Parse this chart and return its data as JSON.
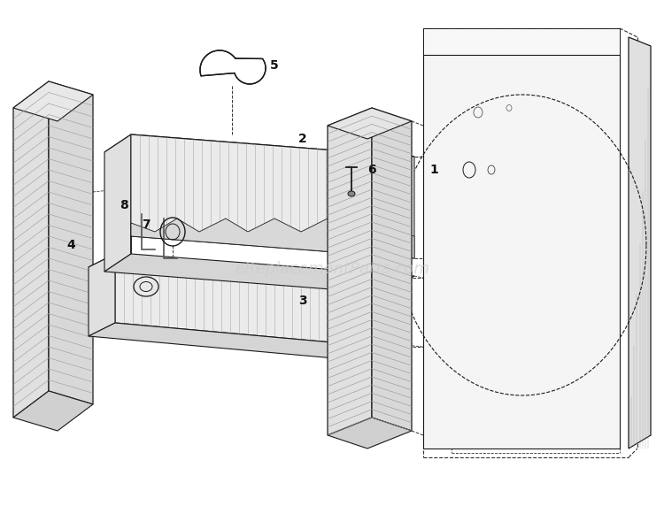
{
  "background_color": "#ffffff",
  "watermark_text": "eReplacementParts.com",
  "watermark_color": "#cccccc",
  "watermark_fontsize": 13,
  "line_color": "#1a1a1a",
  "dashed_color": "#333333",
  "fill_light": "#f2f2f2",
  "fill_medium": "#e0e0e0",
  "fill_dark": "#c8c8c8",
  "hatch_color": "#888888"
}
